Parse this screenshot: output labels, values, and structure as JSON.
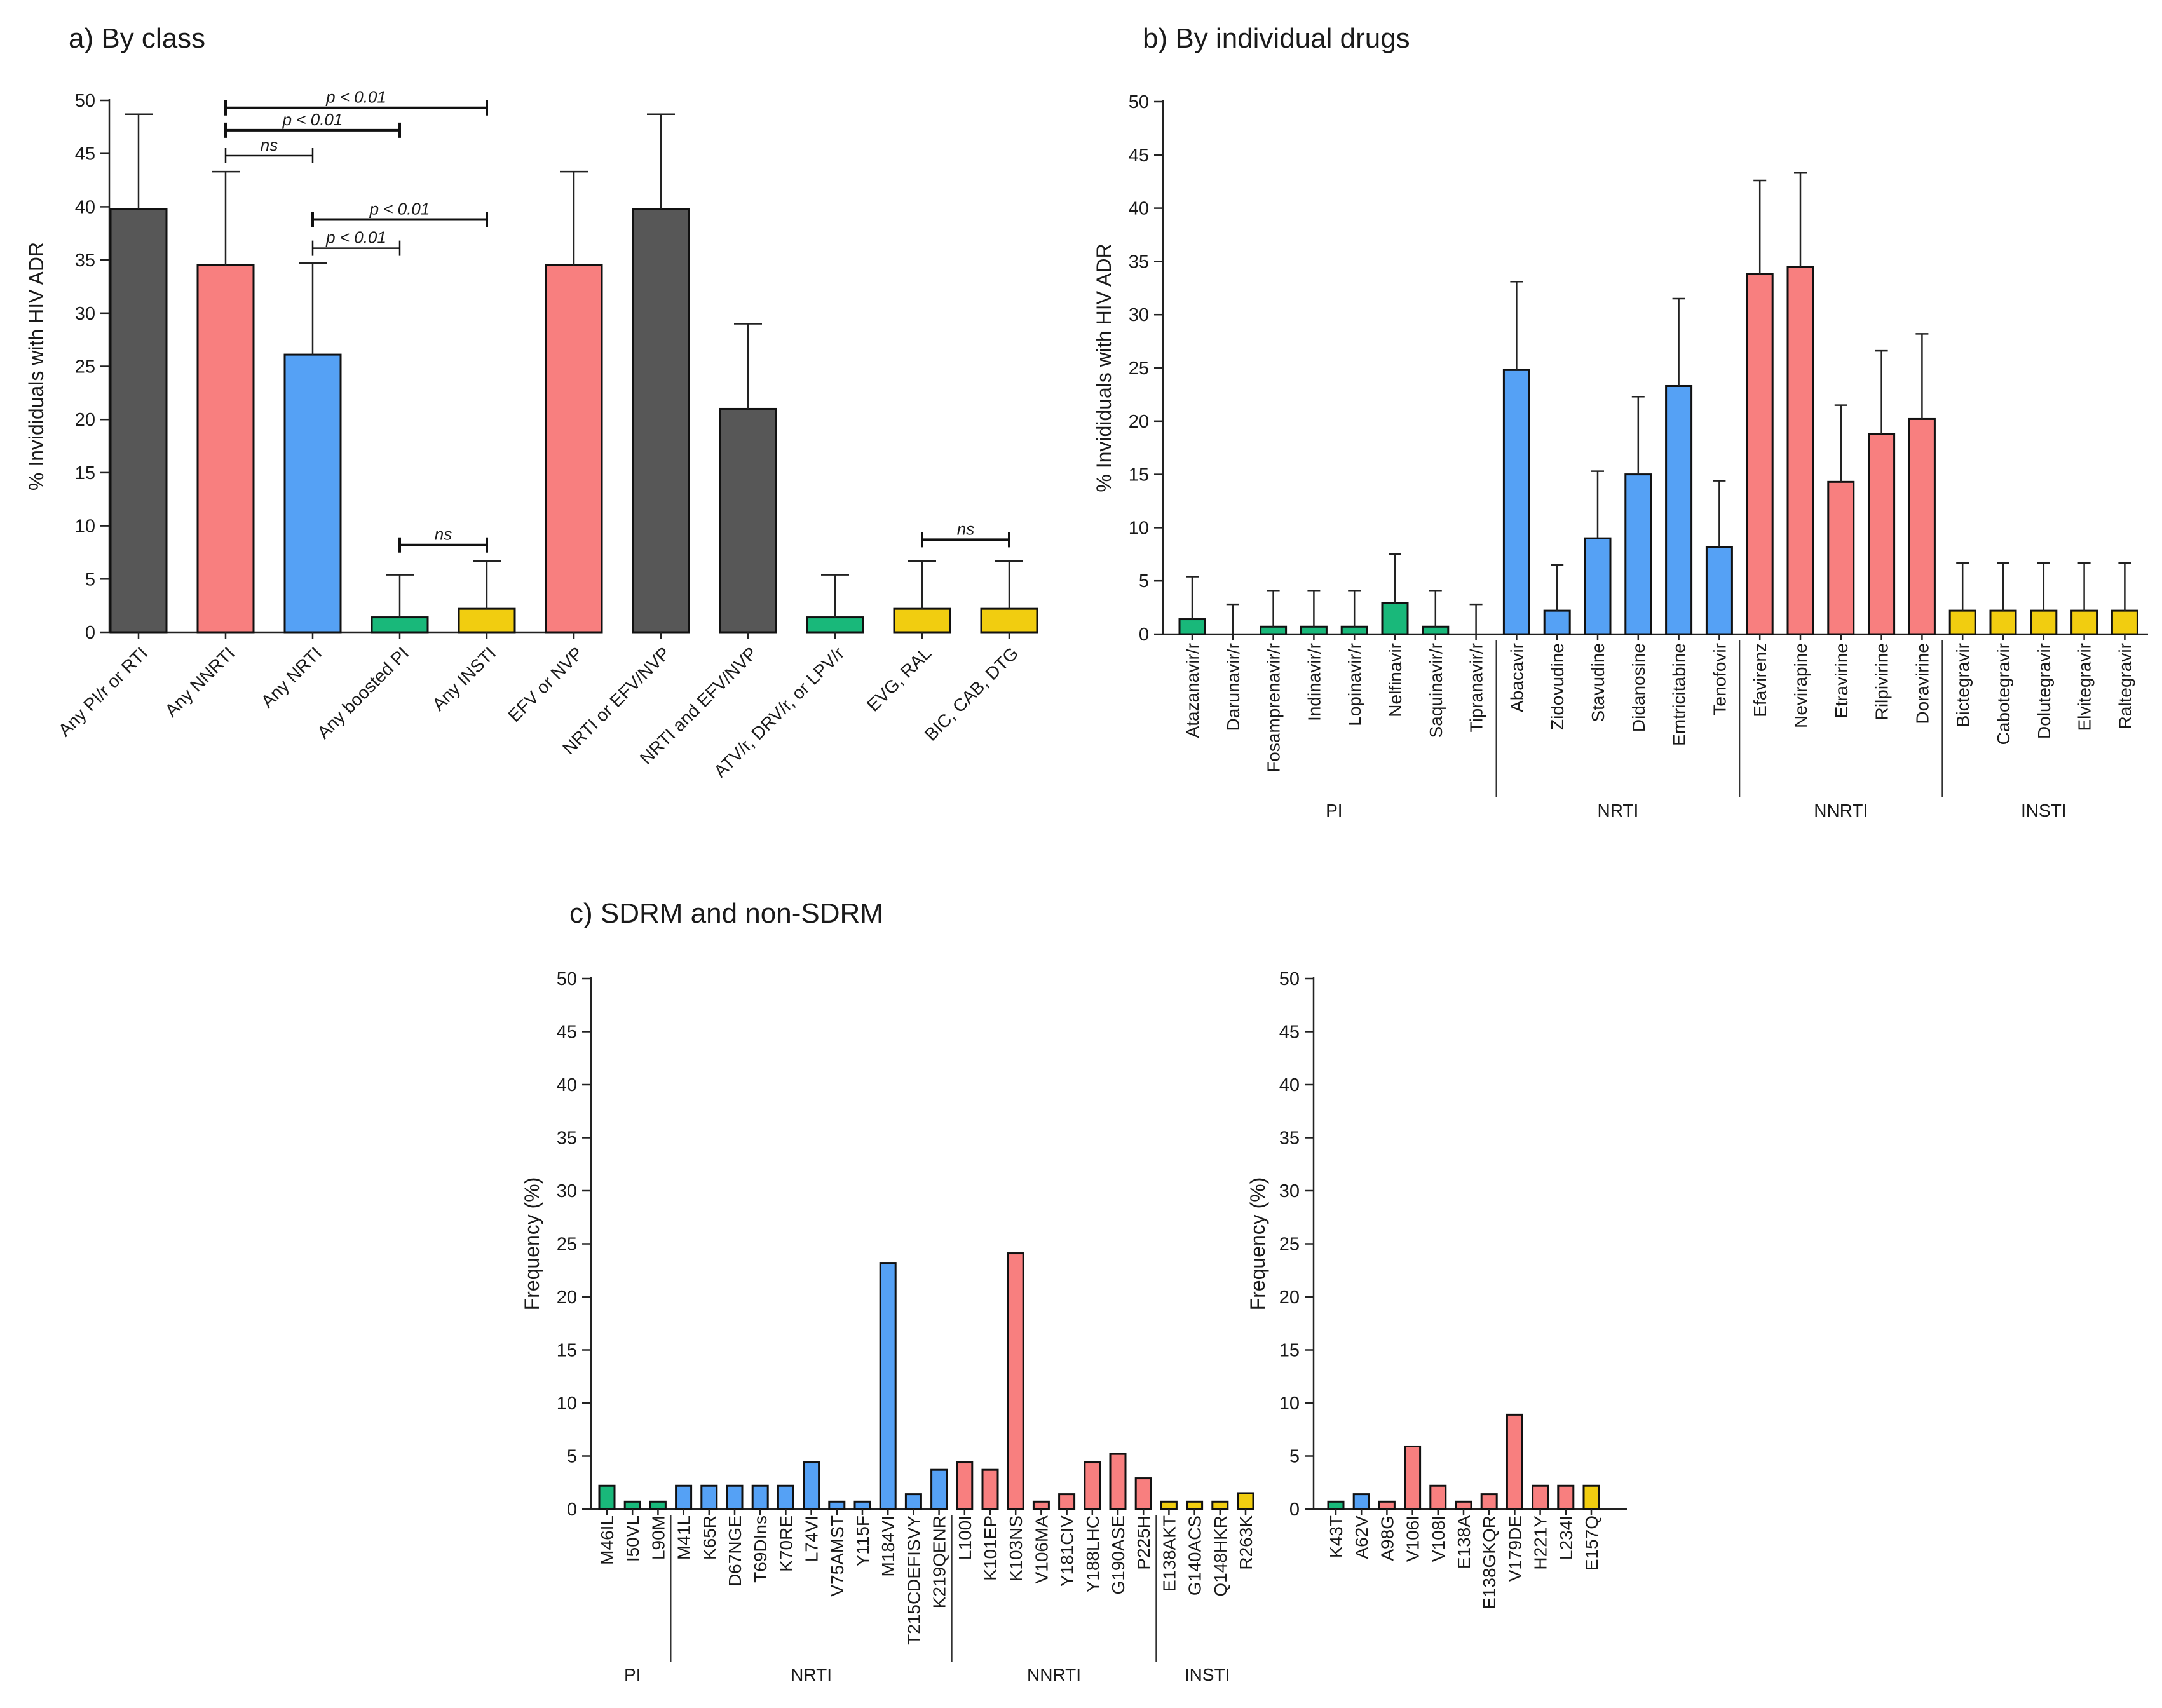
{
  "colors": {
    "dark": "#575757",
    "red": "#f87f7f",
    "blue": "#55a1f5",
    "green": "#19b87a",
    "yellow": "#f1cd10"
  },
  "chart_data": [
    {
      "id": "a",
      "type": "bar",
      "title": "a) By class",
      "ylabel": "% Invididuals with HIV ADR",
      "ylim": [
        0,
        50
      ],
      "yticks": [
        "0",
        "5",
        "10",
        "15",
        "20",
        "25",
        "30",
        "35",
        "40",
        "45",
        "50"
      ],
      "categories": [
        "Any PI/r or RTI",
        "Any NNRTI",
        "Any NRTI",
        "Any boosted PI",
        "Any INSTI",
        "EFV or NVP",
        "NRTI or EFV/NVP",
        "NRTI and EFV/NVP",
        "ATV/r, DRV/r, or LPV/r",
        "EVG, RAL",
        "BIC, CAB, DTG"
      ],
      "values": [
        39.8,
        34.5,
        26.1,
        1.4,
        2.2,
        34.5,
        39.8,
        21.0,
        1.4,
        2.2,
        2.2
      ],
      "errors": [
        48.7,
        43.3,
        34.7,
        5.4,
        6.7,
        43.3,
        48.7,
        29.0,
        5.4,
        6.7,
        6.7
      ],
      "colors": [
        "dark",
        "red",
        "blue",
        "green",
        "yellow",
        "red",
        "dark",
        "dark",
        "green",
        "yellow",
        "yellow"
      ],
      "comparisons": [
        {
          "from": 1,
          "to": 4,
          "label": "p < 0.01",
          "level": 49.3,
          "bold": true
        },
        {
          "from": 1,
          "to": 3,
          "label": "p < 0.01",
          "level": 47.2,
          "bold": true
        },
        {
          "from": 1,
          "to": 2,
          "label": "ns",
          "level": 44.8,
          "bold": false
        },
        {
          "from": 2,
          "to": 4,
          "label": "p < 0.01",
          "level": 38.8,
          "bold": true
        },
        {
          "from": 2,
          "to": 3,
          "label": "p < 0.01",
          "level": 36.1,
          "bold": false
        },
        {
          "from": 3,
          "to": 4,
          "label": "ns",
          "level": 8.2,
          "bold": true
        },
        {
          "from": 9,
          "to": 10,
          "label": "ns",
          "level": 8.7,
          "bold": true
        }
      ]
    },
    {
      "id": "b",
      "type": "bar",
      "title": "b) By individual drugs",
      "ylabel": "% Invididuals with HIV ADR",
      "ylim": [
        0,
        50
      ],
      "yticks": [
        "0",
        "5",
        "10",
        "15",
        "20",
        "25",
        "30",
        "35",
        "40",
        "45",
        "50"
      ],
      "categories": [
        "Atazanavir/r",
        "Darunavir/r",
        "Fosamprenavir/r",
        "Indinavir/r",
        "Lopinavir/r",
        "Nelfinavir",
        "Saquinavir/r",
        "Tipranavir/r",
        "Abacavir",
        "Zidovudine",
        "Stavudine",
        "Didanosine",
        "Emtricitabine",
        "Tenofovir",
        "Efavirenz",
        "Nevirapine",
        "Etravirine",
        "Rilpivirine",
        "Doravirine",
        "Bictegravir",
        "Cabotegravir",
        "Dolutegravir",
        "Elvitegravir",
        "Raltegravir"
      ],
      "values": [
        1.4,
        0,
        0.7,
        0.7,
        0.7,
        2.9,
        0.7,
        0,
        24.8,
        2.2,
        9.0,
        15.0,
        23.3,
        8.2,
        33.8,
        34.5,
        14.3,
        18.8,
        20.2,
        2.2,
        2.2,
        2.2,
        2.2,
        2.2
      ],
      "errors": [
        5.4,
        2.8,
        4.1,
        4.1,
        4.1,
        7.5,
        4.1,
        2.8,
        33.1,
        6.5,
        15.3,
        22.3,
        31.5,
        14.4,
        42.6,
        43.3,
        21.5,
        26.6,
        28.2,
        6.7,
        6.7,
        6.7,
        6.7,
        6.7
      ],
      "colors": [
        "green",
        "green",
        "green",
        "green",
        "green",
        "green",
        "green",
        "green",
        "blue",
        "blue",
        "blue",
        "blue",
        "blue",
        "blue",
        "red",
        "red",
        "red",
        "red",
        "red",
        "yellow",
        "yellow",
        "yellow",
        "yellow",
        "yellow"
      ],
      "groups": [
        {
          "label": "PI",
          "start": 0,
          "end": 7
        },
        {
          "label": "NRTI",
          "start": 8,
          "end": 13
        },
        {
          "label": "NNRTI",
          "start": 14,
          "end": 18
        },
        {
          "label": "INSTI",
          "start": 19,
          "end": 23
        }
      ]
    },
    {
      "id": "c1",
      "type": "bar",
      "title": "c) SDRM and non-SDRM",
      "ylabel": "Frequency (%)",
      "ylim": [
        0,
        50
      ],
      "yticks": [
        "0",
        "5",
        "10",
        "15",
        "20",
        "25",
        "30",
        "35",
        "40",
        "45",
        "50"
      ],
      "categories": [
        "M46IL",
        "I50VL",
        "L90M",
        "M41L",
        "K65R",
        "D67NGE",
        "T69DIns",
        "K70RE",
        "L74VI",
        "V75AMST",
        "Y115F",
        "M184VI",
        "T215CDEFISVY",
        "K219QENR",
        "L100I",
        "K101EP",
        "K103NS",
        "V106MA",
        "Y181CIV",
        "Y188LHC",
        "G190ASE",
        "P225H",
        "E138AKT",
        "G140ACS",
        "Q148HKR",
        "R263K"
      ],
      "values": [
        2.2,
        0.7,
        0.7,
        2.2,
        2.2,
        2.2,
        2.2,
        2.2,
        4.4,
        0.7,
        0.7,
        23.2,
        1.4,
        3.7,
        4.4,
        3.7,
        24.1,
        0.7,
        1.4,
        4.4,
        5.2,
        2.9,
        0.7,
        0.7,
        0.7,
        1.5
      ],
      "colors": [
        "green",
        "green",
        "green",
        "blue",
        "blue",
        "blue",
        "blue",
        "blue",
        "blue",
        "blue",
        "blue",
        "blue",
        "blue",
        "blue",
        "red",
        "red",
        "red",
        "red",
        "red",
        "red",
        "red",
        "red",
        "yellow",
        "yellow",
        "yellow",
        "yellow"
      ],
      "groups": [
        {
          "label": "PI",
          "start": 0,
          "end": 2
        },
        {
          "label": "NRTI",
          "start": 3,
          "end": 13
        },
        {
          "label": "NNRTI",
          "start": 14,
          "end": 21
        },
        {
          "label": "INSTI",
          "start": 22,
          "end": 25
        }
      ]
    },
    {
      "id": "c2",
      "type": "bar",
      "title": "",
      "ylabel": "Frequency (%)",
      "ylim": [
        0,
        50
      ],
      "yticks": [
        "0",
        "5",
        "10",
        "15",
        "20",
        "25",
        "30",
        "35",
        "40",
        "45",
        "50"
      ],
      "categories": [
        "K43T",
        "A62V",
        "A98G",
        "V106I",
        "V108I",
        "E138A",
        "E138GKQR",
        "V179DE",
        "H221Y",
        "L234I",
        "E157Q"
      ],
      "values": [
        0.7,
        1.4,
        0.7,
        5.9,
        2.2,
        0.7,
        1.4,
        8.9,
        2.2,
        2.2,
        2.2
      ],
      "colors": [
        "green",
        "blue",
        "red",
        "red",
        "red",
        "red",
        "red",
        "red",
        "red",
        "red",
        "yellow"
      ]
    }
  ]
}
